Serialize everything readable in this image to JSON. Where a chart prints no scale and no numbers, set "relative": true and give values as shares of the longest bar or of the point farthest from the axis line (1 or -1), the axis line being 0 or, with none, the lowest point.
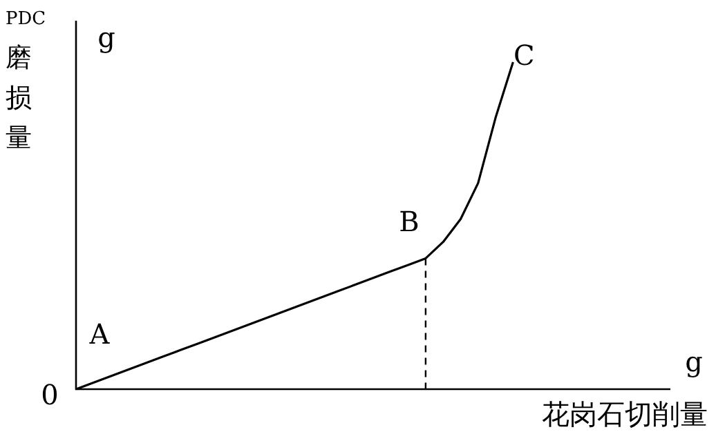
{
  "chart_data": {
    "type": "line",
    "relative": true,
    "categories": [
      null,
      null,
      null,
      null,
      null,
      null,
      null,
      null,
      null,
      null,
      null,
      null,
      null,
      null,
      null,
      null,
      null,
      null,
      null,
      null,
      null,
      null,
      null,
      null,
      null,
      null,
      null,
      null,
      null,
      null,
      null,
      null,
      null,
      null,
      null
    ],
    "series": [
      {
        "color": "#000000",
        "values": [
          0,
          0.02,
          0.04,
          0.06,
          0.08,
          0.1,
          0.12,
          0.14,
          0.16,
          0.18,
          0.2,
          0.22,
          0.24,
          0.26,
          0.28,
          0.3,
          0.32,
          0.34,
          0.36,
          0.38,
          0.4,
          0.45,
          0.52,
          0.63,
          0.83,
          1,
          null,
          null,
          null,
          null,
          null,
          null,
          null,
          null,
          null
        ]
      }
    ],
    "xlabel": "花岗石切削量",
    "ylabel": "PDC磨损量",
    "annotations": [
      "A",
      "B",
      "C",
      "0",
      "g",
      "g"
    ],
    "marker": "none",
    "line_style": "solid",
    "grid": false,
    "legend": false
  }
}
